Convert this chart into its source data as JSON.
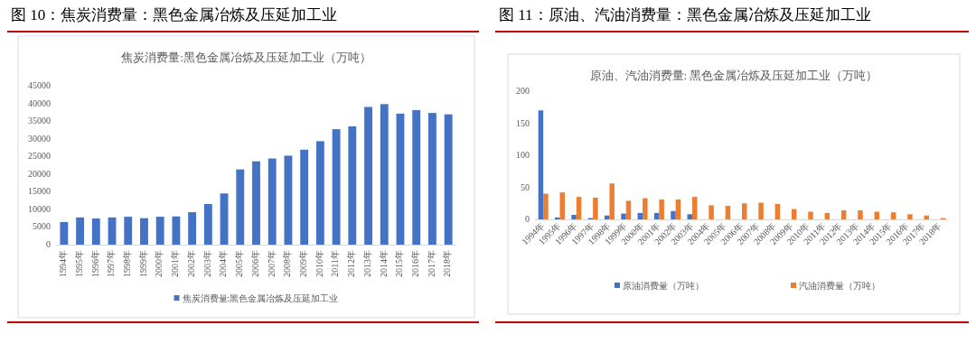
{
  "chart_data": [
    {
      "type": "bar",
      "title": "图 10：焦炭消费量：黑色金属冶炼及压延加工业",
      "subtitle": "焦炭消费量:黑色金属冶炼及压延加工业（万吨）",
      "categories": [
        "1994年",
        "1995年",
        "1996年",
        "1997年",
        "1998年",
        "1999年",
        "2000年",
        "2001年",
        "2002年",
        "2003年",
        "2004年",
        "2005年",
        "2006年",
        "2007年",
        "2008年",
        "2009年",
        "2010年",
        "2011年",
        "2012年",
        "2013年",
        "2014年",
        "2015年",
        "2016年",
        "2017年",
        "2018年"
      ],
      "series": [
        {
          "name": "焦炭消费量:黑色金属冶炼及压延加工业",
          "color": "#4472c4",
          "values": [
            6400,
            7700,
            7400,
            7700,
            7900,
            7500,
            7900,
            8000,
            9200,
            11500,
            14500,
            21300,
            23600,
            24400,
            25200,
            26900,
            29300,
            32700,
            33500,
            39000,
            39800,
            37100,
            38100,
            37300,
            36900
          ]
        }
      ],
      "ylim": [
        0,
        45000
      ],
      "yticks": [
        0,
        5000,
        10000,
        15000,
        20000,
        25000,
        30000,
        35000,
        40000,
        45000
      ],
      "legend": "bottom"
    },
    {
      "type": "bar",
      "title": "图 11：原油、汽油消费量：黑色金属冶炼及压延加工业",
      "subtitle": "原油、汽油消费量: 黑色金属冶炼及压延加工业（万吨）",
      "categories": [
        "1994年",
        "1995年",
        "1996年",
        "1997年",
        "1998年",
        "1999年",
        "2000年",
        "2001年",
        "2002年",
        "2003年",
        "2004年",
        "2005年",
        "2006年",
        "2007年",
        "2008年",
        "2009年",
        "2010年",
        "2011年",
        "2012年",
        "2013年",
        "2014年",
        "2015年",
        "2016年",
        "2017年",
        "2018年"
      ],
      "series": [
        {
          "name": "原油消费量（万吨）",
          "color": "#4472c4",
          "values": [
            170,
            3,
            7,
            2,
            6,
            9,
            10,
            10,
            13,
            8,
            null,
            null,
            null,
            null,
            null,
            null,
            null,
            null,
            null,
            null,
            null,
            null,
            null,
            null,
            null
          ]
        },
        {
          "name": "汽油消费量（万吨）",
          "color": "#ed7d31",
          "values": [
            40,
            42,
            35,
            34,
            56,
            29,
            33,
            31,
            31,
            35,
            22,
            21,
            25,
            26,
            24,
            16,
            12,
            10,
            14,
            14,
            12,
            11,
            8,
            6,
            2
          ]
        }
      ],
      "ylim": [
        0,
        200
      ],
      "yticks": [
        0,
        50,
        100,
        150,
        200
      ],
      "legend": "bottom"
    }
  ]
}
